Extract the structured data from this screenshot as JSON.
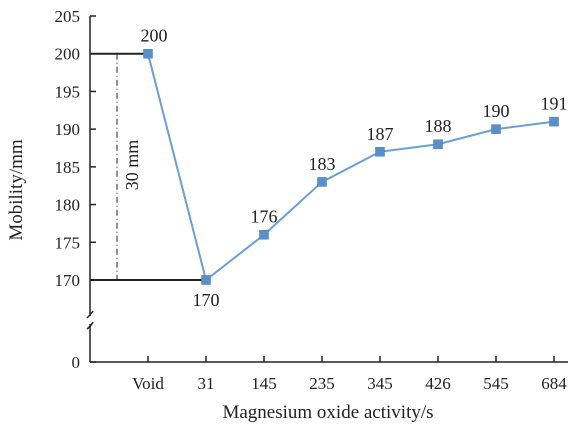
{
  "chart_data": {
    "type": "line",
    "xlabel": "Magnesium oxide activity/s",
    "ylabel": "Mobility/mm",
    "categories": [
      "Void",
      "31",
      "145",
      "235",
      "345",
      "426",
      "545",
      "684"
    ],
    "series": [
      {
        "values": [
          200,
          170,
          176,
          183,
          187,
          188,
          190,
          191
        ],
        "color": "#5b8fc9"
      }
    ],
    "y_ticks": [
      0,
      170,
      175,
      180,
      185,
      190,
      195,
      200,
      205
    ],
    "y_axis_break": [
      0,
      170
    ],
    "grid": false,
    "annotation": {
      "text": "30 mm",
      "from": 170,
      "to": 200
    }
  }
}
